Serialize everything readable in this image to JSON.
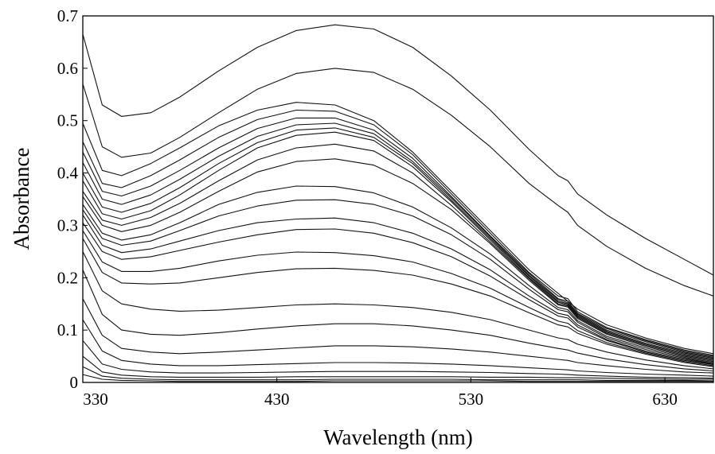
{
  "chart_data": {
    "type": "line",
    "title": "",
    "xlabel": "Wavelength (nm)",
    "ylabel": "Absorbance",
    "xlim": [
      330,
      655
    ],
    "ylim": [
      0,
      0.7
    ],
    "xticks": [
      330,
      430,
      530,
      630
    ],
    "yticks": [
      0,
      0.1,
      0.2,
      0.3,
      0.4,
      0.5,
      0.6,
      0.7
    ],
    "xtick_labels": [
      "330",
      "430",
      "530",
      "630"
    ],
    "ytick_labels": [
      "0",
      "0.1",
      "0.2",
      "0.3",
      "0.4",
      "0.5",
      "0.6",
      "0.7"
    ],
    "grid": false,
    "legend": "none",
    "line_color": "#111111",
    "x": [
      330,
      340,
      350,
      365,
      380,
      400,
      420,
      440,
      460,
      480,
      500,
      520,
      540,
      560,
      575,
      580,
      585,
      600,
      620,
      640,
      655
    ],
    "series": [
      {
        "values": [
          0.665,
          0.53,
          0.508,
          0.515,
          0.545,
          0.595,
          0.64,
          0.672,
          0.683,
          0.675,
          0.64,
          0.585,
          0.52,
          0.445,
          0.395,
          0.385,
          0.36,
          0.32,
          0.275,
          0.235,
          0.205
        ]
      },
      {
        "values": [
          0.57,
          0.45,
          0.43,
          0.438,
          0.468,
          0.515,
          0.56,
          0.59,
          0.6,
          0.592,
          0.56,
          0.51,
          0.45,
          0.38,
          0.338,
          0.325,
          0.3,
          0.26,
          0.218,
          0.185,
          0.165
        ]
      },
      {
        "values": [
          0.495,
          0.405,
          0.395,
          0.418,
          0.448,
          0.49,
          0.52,
          0.535,
          0.53,
          0.5,
          0.44,
          0.365,
          0.29,
          0.215,
          0.17,
          0.155,
          0.14,
          0.11,
          0.085,
          0.065,
          0.055
        ]
      },
      {
        "values": [
          0.46,
          0.38,
          0.372,
          0.395,
          0.425,
          0.468,
          0.502,
          0.52,
          0.518,
          0.492,
          0.435,
          0.36,
          0.285,
          0.21,
          0.165,
          0.16,
          0.135,
          0.105,
          0.082,
          0.062,
          0.052
        ]
      },
      {
        "values": [
          0.44,
          0.365,
          0.356,
          0.375,
          0.405,
          0.448,
          0.485,
          0.505,
          0.505,
          0.482,
          0.428,
          0.355,
          0.28,
          0.208,
          0.16,
          0.155,
          0.132,
          0.103,
          0.08,
          0.06,
          0.05
        ]
      },
      {
        "values": [
          0.42,
          0.35,
          0.34,
          0.358,
          0.388,
          0.432,
          0.47,
          0.492,
          0.495,
          0.475,
          0.422,
          0.352,
          0.278,
          0.205,
          0.158,
          0.152,
          0.13,
          0.1,
          0.078,
          0.058,
          0.048
        ]
      },
      {
        "values": [
          0.4,
          0.335,
          0.325,
          0.342,
          0.372,
          0.418,
          0.458,
          0.482,
          0.486,
          0.468,
          0.418,
          0.348,
          0.275,
          0.203,
          0.155,
          0.15,
          0.128,
          0.098,
          0.075,
          0.056,
          0.046
        ]
      },
      {
        "values": [
          0.385,
          0.322,
          0.312,
          0.328,
          0.358,
          0.405,
          0.448,
          0.472,
          0.478,
          0.462,
          0.412,
          0.345,
          0.272,
          0.2,
          0.153,
          0.148,
          0.126,
          0.096,
          0.073,
          0.054,
          0.044
        ]
      },
      {
        "values": [
          0.365,
          0.31,
          0.3,
          0.315,
          0.342,
          0.385,
          0.425,
          0.448,
          0.455,
          0.442,
          0.4,
          0.338,
          0.268,
          0.198,
          0.15,
          0.146,
          0.124,
          0.094,
          0.071,
          0.052,
          0.042
        ]
      },
      {
        "values": [
          0.355,
          0.3,
          0.288,
          0.3,
          0.325,
          0.365,
          0.402,
          0.422,
          0.427,
          0.415,
          0.38,
          0.33,
          0.265,
          0.195,
          0.148,
          0.144,
          0.122,
          0.092,
          0.069,
          0.05,
          0.04
        ]
      },
      {
        "values": [
          0.34,
          0.285,
          0.272,
          0.282,
          0.305,
          0.34,
          0.363,
          0.375,
          0.374,
          0.362,
          0.335,
          0.295,
          0.245,
          0.185,
          0.143,
          0.139,
          0.118,
          0.088,
          0.066,
          0.048,
          0.038
        ]
      },
      {
        "values": [
          0.33,
          0.275,
          0.262,
          0.27,
          0.29,
          0.318,
          0.337,
          0.348,
          0.349,
          0.34,
          0.318,
          0.282,
          0.235,
          0.178,
          0.139,
          0.135,
          0.115,
          0.085,
          0.063,
          0.046,
          0.036
        ]
      },
      {
        "values": [
          0.32,
          0.262,
          0.248,
          0.255,
          0.27,
          0.29,
          0.305,
          0.312,
          0.314,
          0.305,
          0.285,
          0.255,
          0.215,
          0.165,
          0.132,
          0.128,
          0.11,
          0.082,
          0.06,
          0.044,
          0.035
        ]
      },
      {
        "values": [
          0.305,
          0.25,
          0.235,
          0.24,
          0.252,
          0.268,
          0.282,
          0.292,
          0.293,
          0.285,
          0.267,
          0.24,
          0.203,
          0.158,
          0.127,
          0.123,
          0.106,
          0.08,
          0.058,
          0.042,
          0.034
        ]
      },
      {
        "values": [
          0.29,
          0.23,
          0.212,
          0.212,
          0.218,
          0.232,
          0.243,
          0.249,
          0.248,
          0.242,
          0.23,
          0.208,
          0.18,
          0.143,
          0.117,
          0.113,
          0.099,
          0.076,
          0.056,
          0.04,
          0.032
        ]
      },
      {
        "values": [
          0.275,
          0.21,
          0.19,
          0.188,
          0.19,
          0.2,
          0.21,
          0.217,
          0.218,
          0.214,
          0.205,
          0.188,
          0.165,
          0.133,
          0.11,
          0.106,
          0.094,
          0.073,
          0.054,
          0.038,
          0.03
        ]
      },
      {
        "values": [
          0.25,
          0.175,
          0.15,
          0.14,
          0.136,
          0.138,
          0.143,
          0.148,
          0.15,
          0.148,
          0.143,
          0.134,
          0.12,
          0.1,
          0.085,
          0.082,
          0.073,
          0.058,
          0.043,
          0.032,
          0.026
        ]
      },
      {
        "values": [
          0.215,
          0.13,
          0.1,
          0.092,
          0.09,
          0.095,
          0.102,
          0.108,
          0.112,
          0.112,
          0.108,
          0.1,
          0.09,
          0.075,
          0.065,
          0.062,
          0.056,
          0.045,
          0.034,
          0.026,
          0.022
        ]
      },
      {
        "values": [
          0.16,
          0.09,
          0.065,
          0.058,
          0.055,
          0.058,
          0.062,
          0.066,
          0.07,
          0.07,
          0.068,
          0.064,
          0.058,
          0.05,
          0.044,
          0.042,
          0.038,
          0.032,
          0.025,
          0.02,
          0.018
        ]
      },
      {
        "values": [
          0.12,
          0.06,
          0.042,
          0.035,
          0.032,
          0.032,
          0.034,
          0.036,
          0.038,
          0.038,
          0.037,
          0.035,
          0.032,
          0.028,
          0.025,
          0.024,
          0.022,
          0.019,
          0.016,
          0.014,
          0.012
        ]
      },
      {
        "values": [
          0.08,
          0.035,
          0.025,
          0.02,
          0.018,
          0.018,
          0.019,
          0.02,
          0.021,
          0.021,
          0.021,
          0.02,
          0.019,
          0.017,
          0.016,
          0.015,
          0.014,
          0.012,
          0.01,
          0.009,
          0.008
        ]
      },
      {
        "values": [
          0.05,
          0.02,
          0.014,
          0.011,
          0.01,
          0.01,
          0.01,
          0.011,
          0.011,
          0.011,
          0.011,
          0.011,
          0.01,
          0.01,
          0.009,
          0.009,
          0.009,
          0.008,
          0.007,
          0.006,
          0.006
        ]
      },
      {
        "values": [
          0.03,
          0.012,
          0.008,
          0.006,
          0.005,
          0.005,
          0.005,
          0.005,
          0.006,
          0.006,
          0.006,
          0.006,
          0.005,
          0.005,
          0.005,
          0.005,
          0.005,
          0.004,
          0.004,
          0.004,
          0.003
        ]
      },
      {
        "values": [
          0.015,
          0.006,
          0.004,
          0.003,
          0.002,
          0.002,
          0.002,
          0.002,
          0.003,
          0.003,
          0.003,
          0.003,
          0.003,
          0.002,
          0.002,
          0.002,
          0.002,
          0.002,
          0.002,
          0.002,
          0.002
        ]
      }
    ]
  }
}
